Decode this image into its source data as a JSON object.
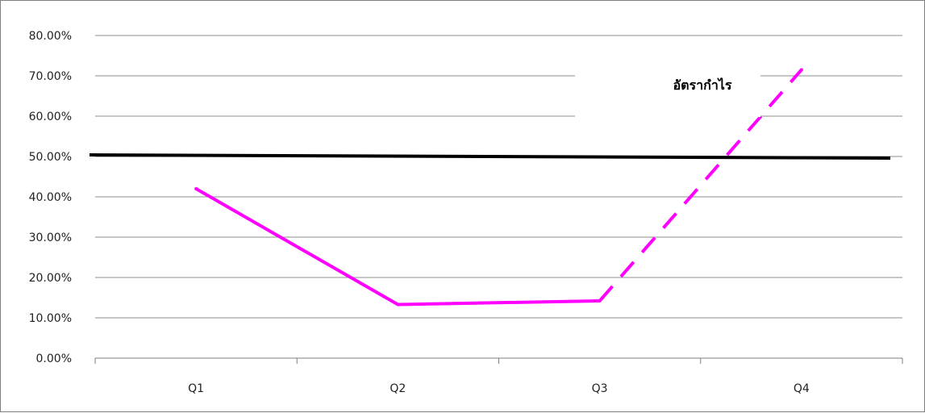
{
  "chart_data": {
    "type": "line",
    "title": "อัตรากำไร",
    "categories": [
      "Q1",
      "Q2",
      "Q3",
      "Q4"
    ],
    "ylim": [
      0,
      80
    ],
    "yticks": [
      "0.00%",
      "10.00%",
      "20.00%",
      "30.00%",
      "40.00%",
      "50.00%",
      "60.00%",
      "70.00%",
      "80.00%"
    ],
    "grid": true,
    "series": [
      {
        "values": [
          42.0,
          13.3,
          14.2,
          71.5
        ],
        "color": "#ff00ff",
        "dashed_segments_from_index": 2
      },
      {
        "values": [
          50.4,
          50.1,
          49.8,
          49.6
        ],
        "color": "#000000"
      }
    ]
  }
}
